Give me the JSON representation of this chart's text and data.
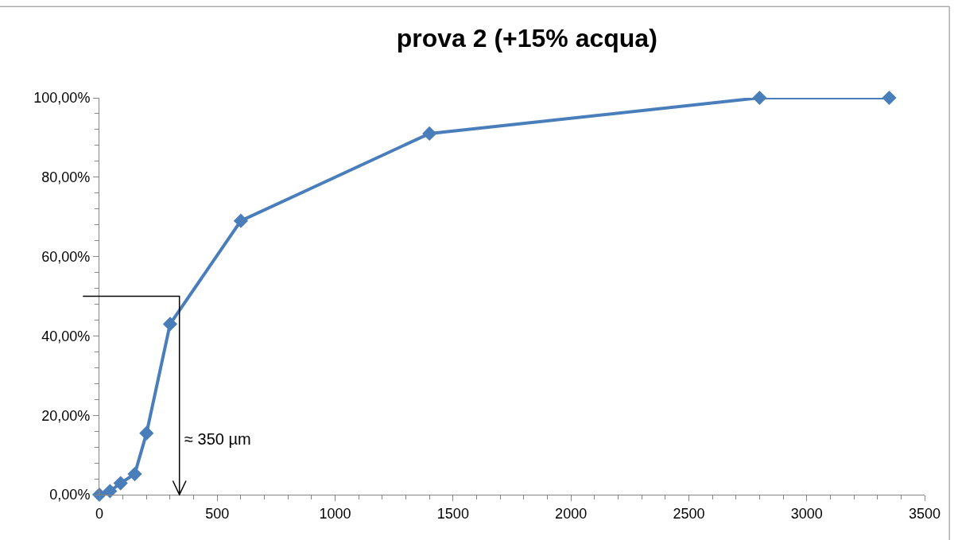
{
  "chart_data": {
    "type": "line",
    "title": "prova 2 (+15% acqua)",
    "x": [
      0,
      45,
      90,
      150,
      200,
      300,
      600,
      1400,
      2800,
      3350
    ],
    "series": [
      {
        "color": "#4a7ebb",
        "values": [
          0,
          0.9,
          2.9,
          5.2,
          15.5,
          43.0,
          69.0,
          91.0,
          100.0,
          100.0
        ]
      }
    ],
    "marker": "diamond",
    "line_style": "solid",
    "xlim": [
      0,
      3500
    ],
    "xticks": [
      0,
      500,
      1000,
      1500,
      2000,
      2500,
      3000,
      3500
    ],
    "ylim": [
      0,
      100
    ],
    "yticks": [
      {
        "value": 0,
        "label": "0,00%"
      },
      {
        "value": 20,
        "label": "20,00%"
      },
      {
        "value": 40,
        "label": "40,00%"
      },
      {
        "value": 60,
        "label": "60,00%"
      },
      {
        "value": 80,
        "label": "80,00%"
      },
      {
        "value": 100,
        "label": "100,00%"
      }
    ],
    "annotations": [
      "≈ 350 µm"
    ]
  }
}
